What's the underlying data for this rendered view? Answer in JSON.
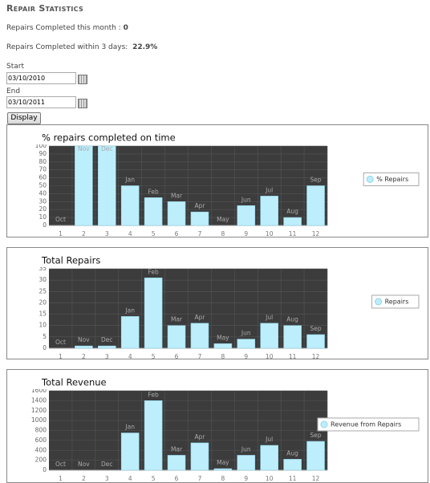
{
  "header": {
    "title": "Repair Statistics"
  },
  "summary": [
    {
      "label": "Repairs Completed this month :",
      "value": "0"
    },
    {
      "label": "Repairs Completed within 3 days:",
      "value": "22.9%"
    }
  ],
  "form": {
    "start_label": "Start",
    "start_value": "03/10/2010",
    "end_label": "End",
    "end_value": "03/10/2011",
    "button": "Display"
  },
  "chart_data": [
    {
      "type": "bar",
      "title": "% repairs completed on time",
      "categories": [
        "Oct",
        "Nov",
        "Dec",
        "Jan",
        "Feb",
        "Mar",
        "Apr",
        "May",
        "Jun",
        "Jul",
        "Aug",
        "Sep"
      ],
      "x": [
        1,
        2,
        3,
        4,
        5,
        6,
        7,
        8,
        9,
        10,
        11,
        12
      ],
      "series": [
        {
          "name": "% Repairs",
          "color": "#bdeefb",
          "values": [
            0,
            100,
            100,
            50,
            35,
            30,
            17,
            0,
            25,
            37,
            10,
            50
          ]
        }
      ],
      "xlim": [
        0.5,
        12.5
      ],
      "xticks": [
        1,
        2,
        3,
        4,
        5,
        6,
        7,
        8,
        9,
        10,
        11,
        12
      ],
      "ylim": [
        0,
        100
      ],
      "yticks": [
        0,
        10,
        20,
        30,
        40,
        50,
        60,
        70,
        80,
        90,
        100
      ],
      "grid": true,
      "legend": "right"
    },
    {
      "type": "bar",
      "title": "Total Repairs",
      "categories": [
        "Oct",
        "Nov",
        "Dec",
        "Jan",
        "Feb",
        "Mar",
        "Apr",
        "May",
        "Jun",
        "Jul",
        "Aug",
        "Sep"
      ],
      "x": [
        1,
        2,
        3,
        4,
        5,
        6,
        7,
        8,
        9,
        10,
        11,
        12
      ],
      "series": [
        {
          "name": "Repairs",
          "color": "#bdeefb",
          "values": [
            0,
            1,
            1,
            14,
            31,
            10,
            11,
            2,
            4,
            11,
            10,
            6
          ]
        }
      ],
      "xlim": [
        0.5,
        12.5
      ],
      "xticks": [
        1,
        2,
        3,
        4,
        5,
        6,
        7,
        8,
        9,
        10,
        11,
        12
      ],
      "ylim": [
        0,
        35
      ],
      "yticks": [
        0,
        5,
        10,
        15,
        20,
        25,
        30,
        35
      ],
      "grid": true,
      "legend": "right"
    },
    {
      "type": "bar",
      "title": "Total Revenue",
      "categories": [
        "Oct",
        "Nov",
        "Dec",
        "Jan",
        "Feb",
        "Mar",
        "Apr",
        "May",
        "Jun",
        "Jul",
        "Aug",
        "Sep"
      ],
      "x": [
        1,
        2,
        3,
        4,
        5,
        6,
        7,
        8,
        9,
        10,
        11,
        12
      ],
      "series": [
        {
          "name": "Revenue from Repairs",
          "color": "#bdeefb",
          "values": [
            0,
            0,
            0,
            750,
            1400,
            300,
            550,
            30,
            300,
            500,
            220,
            580
          ]
        }
      ],
      "xlim": [
        0.5,
        12.5
      ],
      "xticks": [
        1,
        2,
        3,
        4,
        5,
        6,
        7,
        8,
        9,
        10,
        11,
        12
      ],
      "ylim": [
        0,
        1600
      ],
      "yticks": [
        0,
        200,
        400,
        600,
        800,
        1000,
        1200,
        1400,
        1600
      ],
      "grid": true,
      "legend": "right"
    }
  ]
}
